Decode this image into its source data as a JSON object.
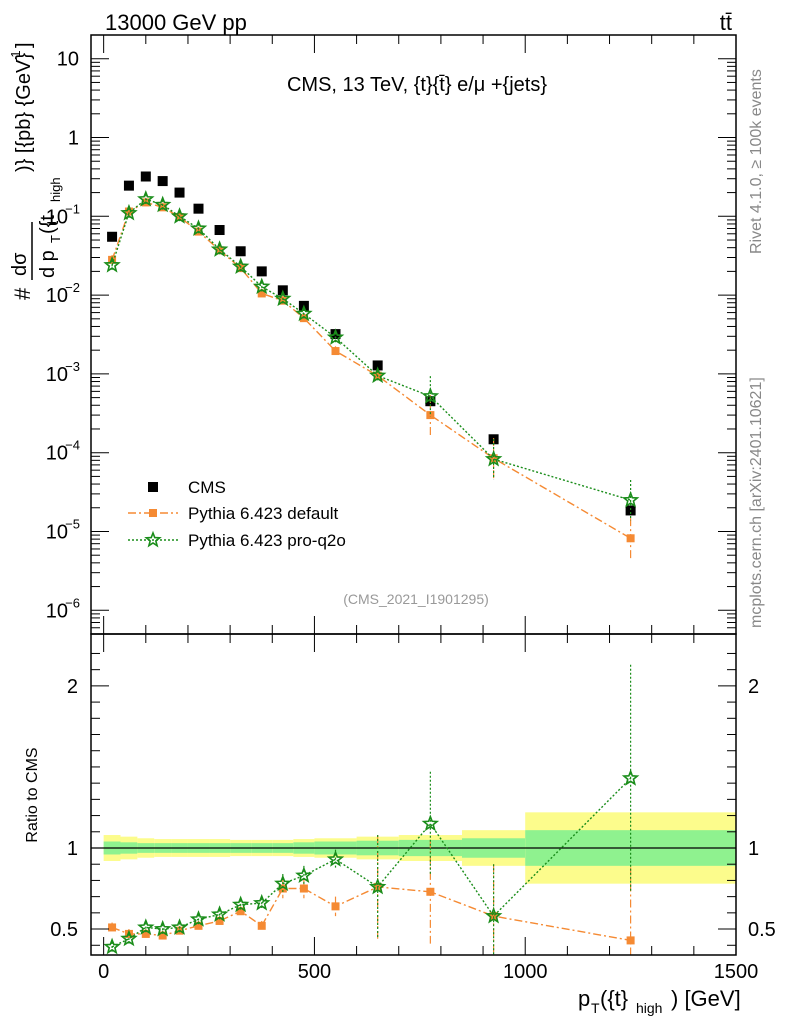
{
  "header": {
    "left": "13000 GeV pp",
    "right": "tt̄"
  },
  "side_labels": {
    "rivet": "Rivet 4.1.0, ≥ 100k events",
    "mcplots": "mcplots.cern.ch [arXiv:2401.10621]"
  },
  "chart_data": [
    {
      "type": "scatter",
      "panel": "main",
      "title": "CMS, 13 TeV, {t}{t̄} e/μ +{jets}",
      "analysis_tag": "(CMS_2021_I1901295)",
      "ylabel": "# dσ/d p_T({t}_high) [{pb} {GeV}^-1]",
      "ylabel_parts": {
        "num": "#",
        "frac_num": "dσ",
        "frac_den": "d p",
        "sub_T": "T",
        "paren": "({t",
        "sub_high": "high",
        "tail": ")} [{pb} {GeV}",
        "exp": "-1",
        "close": "]"
      },
      "yscale": "log",
      "ylim": [
        5e-07,
        20
      ],
      "xlim": [
        -30,
        1500
      ],
      "y_ticks": [
        {
          "v": 1e-06,
          "b": "10",
          "e": "−6"
        },
        {
          "v": 1e-05,
          "b": "10",
          "e": "−5"
        },
        {
          "v": 0.0001,
          "b": "10",
          "e": "−4"
        },
        {
          "v": 0.001,
          "b": "10",
          "e": "−3"
        },
        {
          "v": 0.01,
          "b": "10",
          "e": "−2"
        },
        {
          "v": 0.1,
          "b": "10",
          "e": "−1"
        },
        {
          "v": 1,
          "b": "1",
          "e": ""
        },
        {
          "v": 10,
          "b": "10",
          "e": ""
        }
      ],
      "x": [
        20,
        60,
        100,
        140,
        180,
        225,
        275,
        325,
        375,
        425,
        475,
        550,
        650,
        775,
        925,
        1250
      ],
      "x_edges": [
        0,
        40,
        80,
        120,
        160,
        200,
        250,
        300,
        350,
        400,
        450,
        500,
        600,
        700,
        850,
        1000,
        1500
      ],
      "series": [
        {
          "name": "CMS",
          "values": [
            0.055,
            0.245,
            0.32,
            0.28,
            0.2,
            0.125,
            0.067,
            0.036,
            0.02,
            0.0115,
            0.0073,
            0.0032,
            0.00128,
            0.00045,
            0.000148,
            1.85e-05
          ],
          "color": "#000000",
          "marker": "square"
        },
        {
          "name": "Pythia 6.423 default",
          "values": [
            0.028,
            0.115,
            0.15,
            0.13,
            0.098,
            0.064,
            0.037,
            0.022,
            0.0105,
            0.0085,
            0.0051,
            0.00195,
            0.00095,
            0.0003,
            8.5e-05,
            8.2e-06
          ],
          "color": "#f58a33",
          "marker": "square",
          "line": "dashdot"
        },
        {
          "name": "Pythia 6.423 pro-q2o",
          "values": [
            0.024,
            0.11,
            0.165,
            0.14,
            0.1,
            0.07,
            0.038,
            0.023,
            0.0128,
            0.009,
            0.0058,
            0.0029,
            0.00095,
            0.00052,
            8.3e-05,
            2.5e-05
          ],
          "color": "#1a8d1a",
          "marker": "star",
          "line": "dotted"
        }
      ],
      "legend": [
        "CMS",
        "Pythia 6.423 default",
        "Pythia 6.423 pro-q2o"
      ],
      "legend_position": "bottom-left"
    },
    {
      "type": "scatter",
      "panel": "ratio",
      "ylabel": "Ratio to CMS",
      "xlabel": "p_T({t}_high) [GeV]",
      "xlabel_parts": {
        "p": "p",
        "sub_T": "T",
        "mid": "({t}",
        "sub_high": "high",
        "tail": ") [GeV]"
      },
      "xlim": [
        -30,
        1500
      ],
      "ylim": [
        0.34,
        2.32
      ],
      "x_ticks": [
        0,
        500,
        1000,
        1500
      ],
      "y_ticks": [
        0.5,
        1,
        2
      ],
      "x_edges": [
        0,
        40,
        80,
        120,
        160,
        200,
        250,
        300,
        350,
        400,
        450,
        500,
        600,
        700,
        850,
        1000,
        1500
      ],
      "band_inner_halfwidth": [
        0.04,
        0.035,
        0.03,
        0.03,
        0.03,
        0.03,
        0.03,
        0.03,
        0.03,
        0.03,
        0.035,
        0.04,
        0.045,
        0.05,
        0.06,
        0.11
      ],
      "band_outer_halfwidth": [
        0.08,
        0.07,
        0.06,
        0.055,
        0.055,
        0.055,
        0.055,
        0.05,
        0.05,
        0.05,
        0.055,
        0.06,
        0.07,
        0.08,
        0.11,
        0.22
      ],
      "x": [
        20,
        60,
        100,
        140,
        180,
        225,
        275,
        325,
        375,
        425,
        475,
        550,
        650,
        775,
        925,
        1250
      ],
      "series": [
        {
          "name": "Pythia 6.423 default",
          "values": [
            0.51,
            0.47,
            0.47,
            0.46,
            0.49,
            0.52,
            0.55,
            0.61,
            0.52,
            0.75,
            0.75,
            0.64,
            0.76,
            0.73,
            0.58,
            0.43
          ],
          "color": "#f58a33",
          "marker": "square",
          "line": "dashdot"
        },
        {
          "name": "Pythia 6.423 pro-q2o",
          "values": [
            0.39,
            0.44,
            0.51,
            0.5,
            0.51,
            0.56,
            0.59,
            0.65,
            0.66,
            0.78,
            0.83,
            0.93,
            0.76,
            1.15,
            0.58,
            1.43
          ],
          "color": "#1a8d1a",
          "marker": "star",
          "line": "dotted"
        }
      ],
      "band_colors": {
        "inner": "#8ff28f",
        "outer": "#fcfc8c"
      }
    }
  ]
}
